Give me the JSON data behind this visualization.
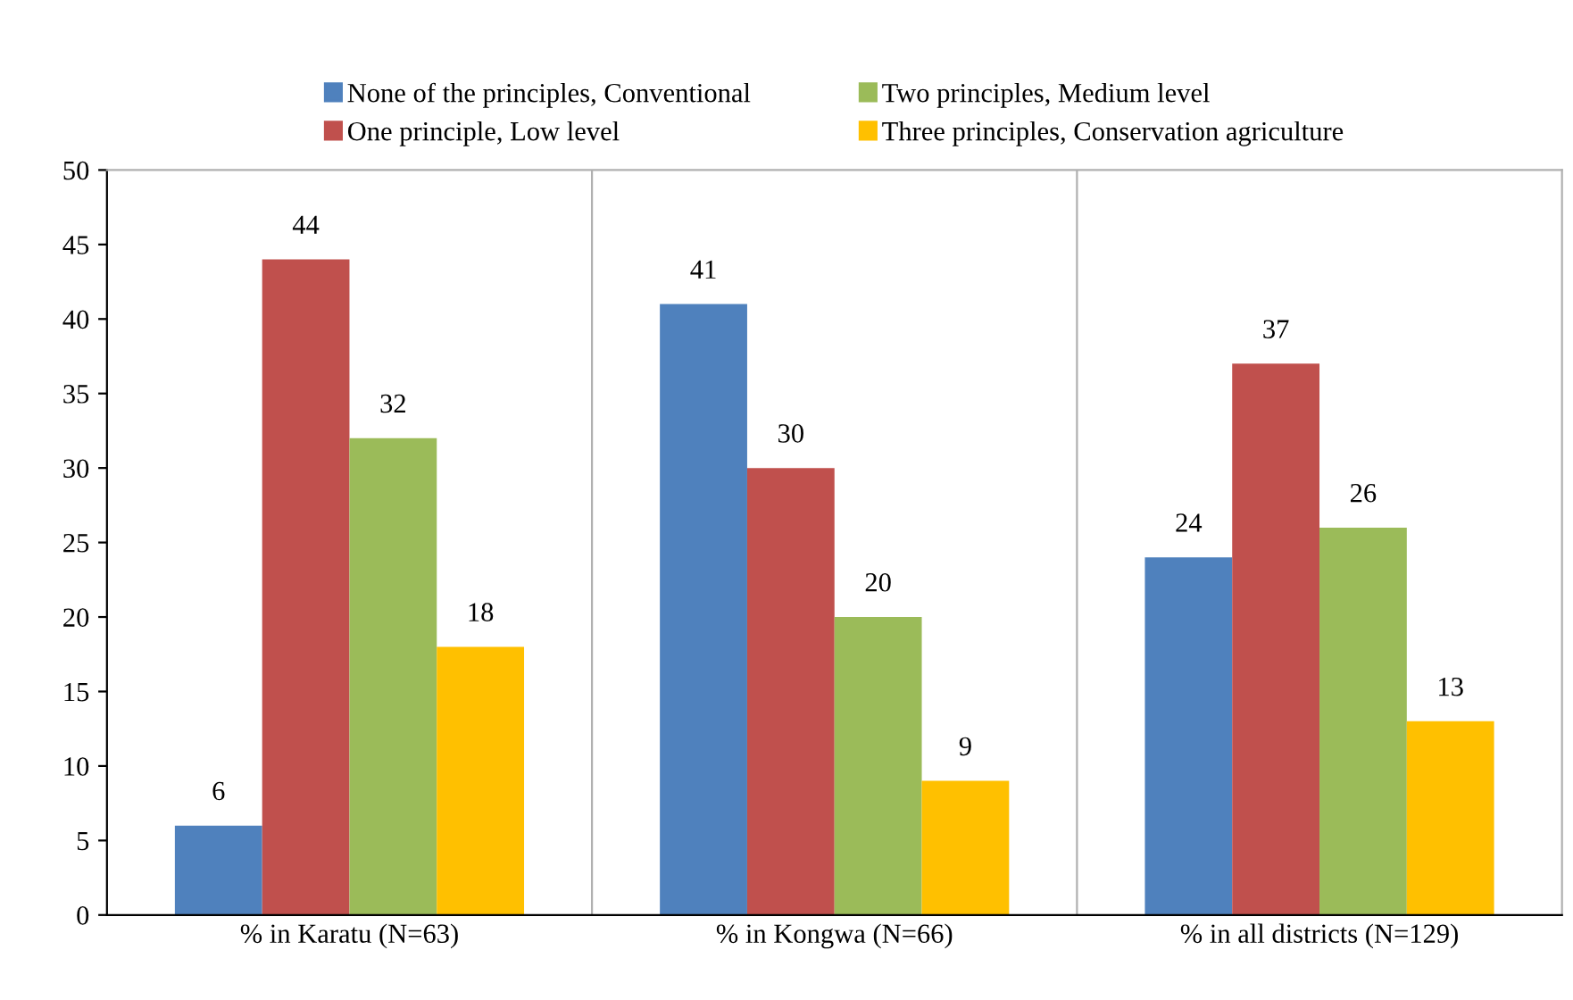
{
  "chart_data": {
    "type": "bar",
    "categories": [
      "% in Karatu (N=63)",
      "% in Kongwa (N=66)",
      "% in all districts (N=129)"
    ],
    "series": [
      {
        "name": "None of the principles, Conventional",
        "color": "#4f81bd",
        "values": [
          6,
          41,
          24
        ]
      },
      {
        "name": "One principle, Low level",
        "color": "#c0504d",
        "values": [
          44,
          30,
          37
        ]
      },
      {
        "name": "Two principles, Medium level",
        "color": "#9bbb59",
        "values": [
          32,
          20,
          26
        ]
      },
      {
        "name": "Three principles, Conservation agriculture",
        "color": "#ffc000",
        "values": [
          18,
          9,
          13
        ]
      }
    ],
    "ylim": [
      0,
      50
    ],
    "yticks": [
      0,
      5,
      10,
      15,
      20,
      25,
      30,
      35,
      40,
      45,
      50
    ],
    "grid": "x",
    "legend": "top",
    "data_labels": true
  }
}
